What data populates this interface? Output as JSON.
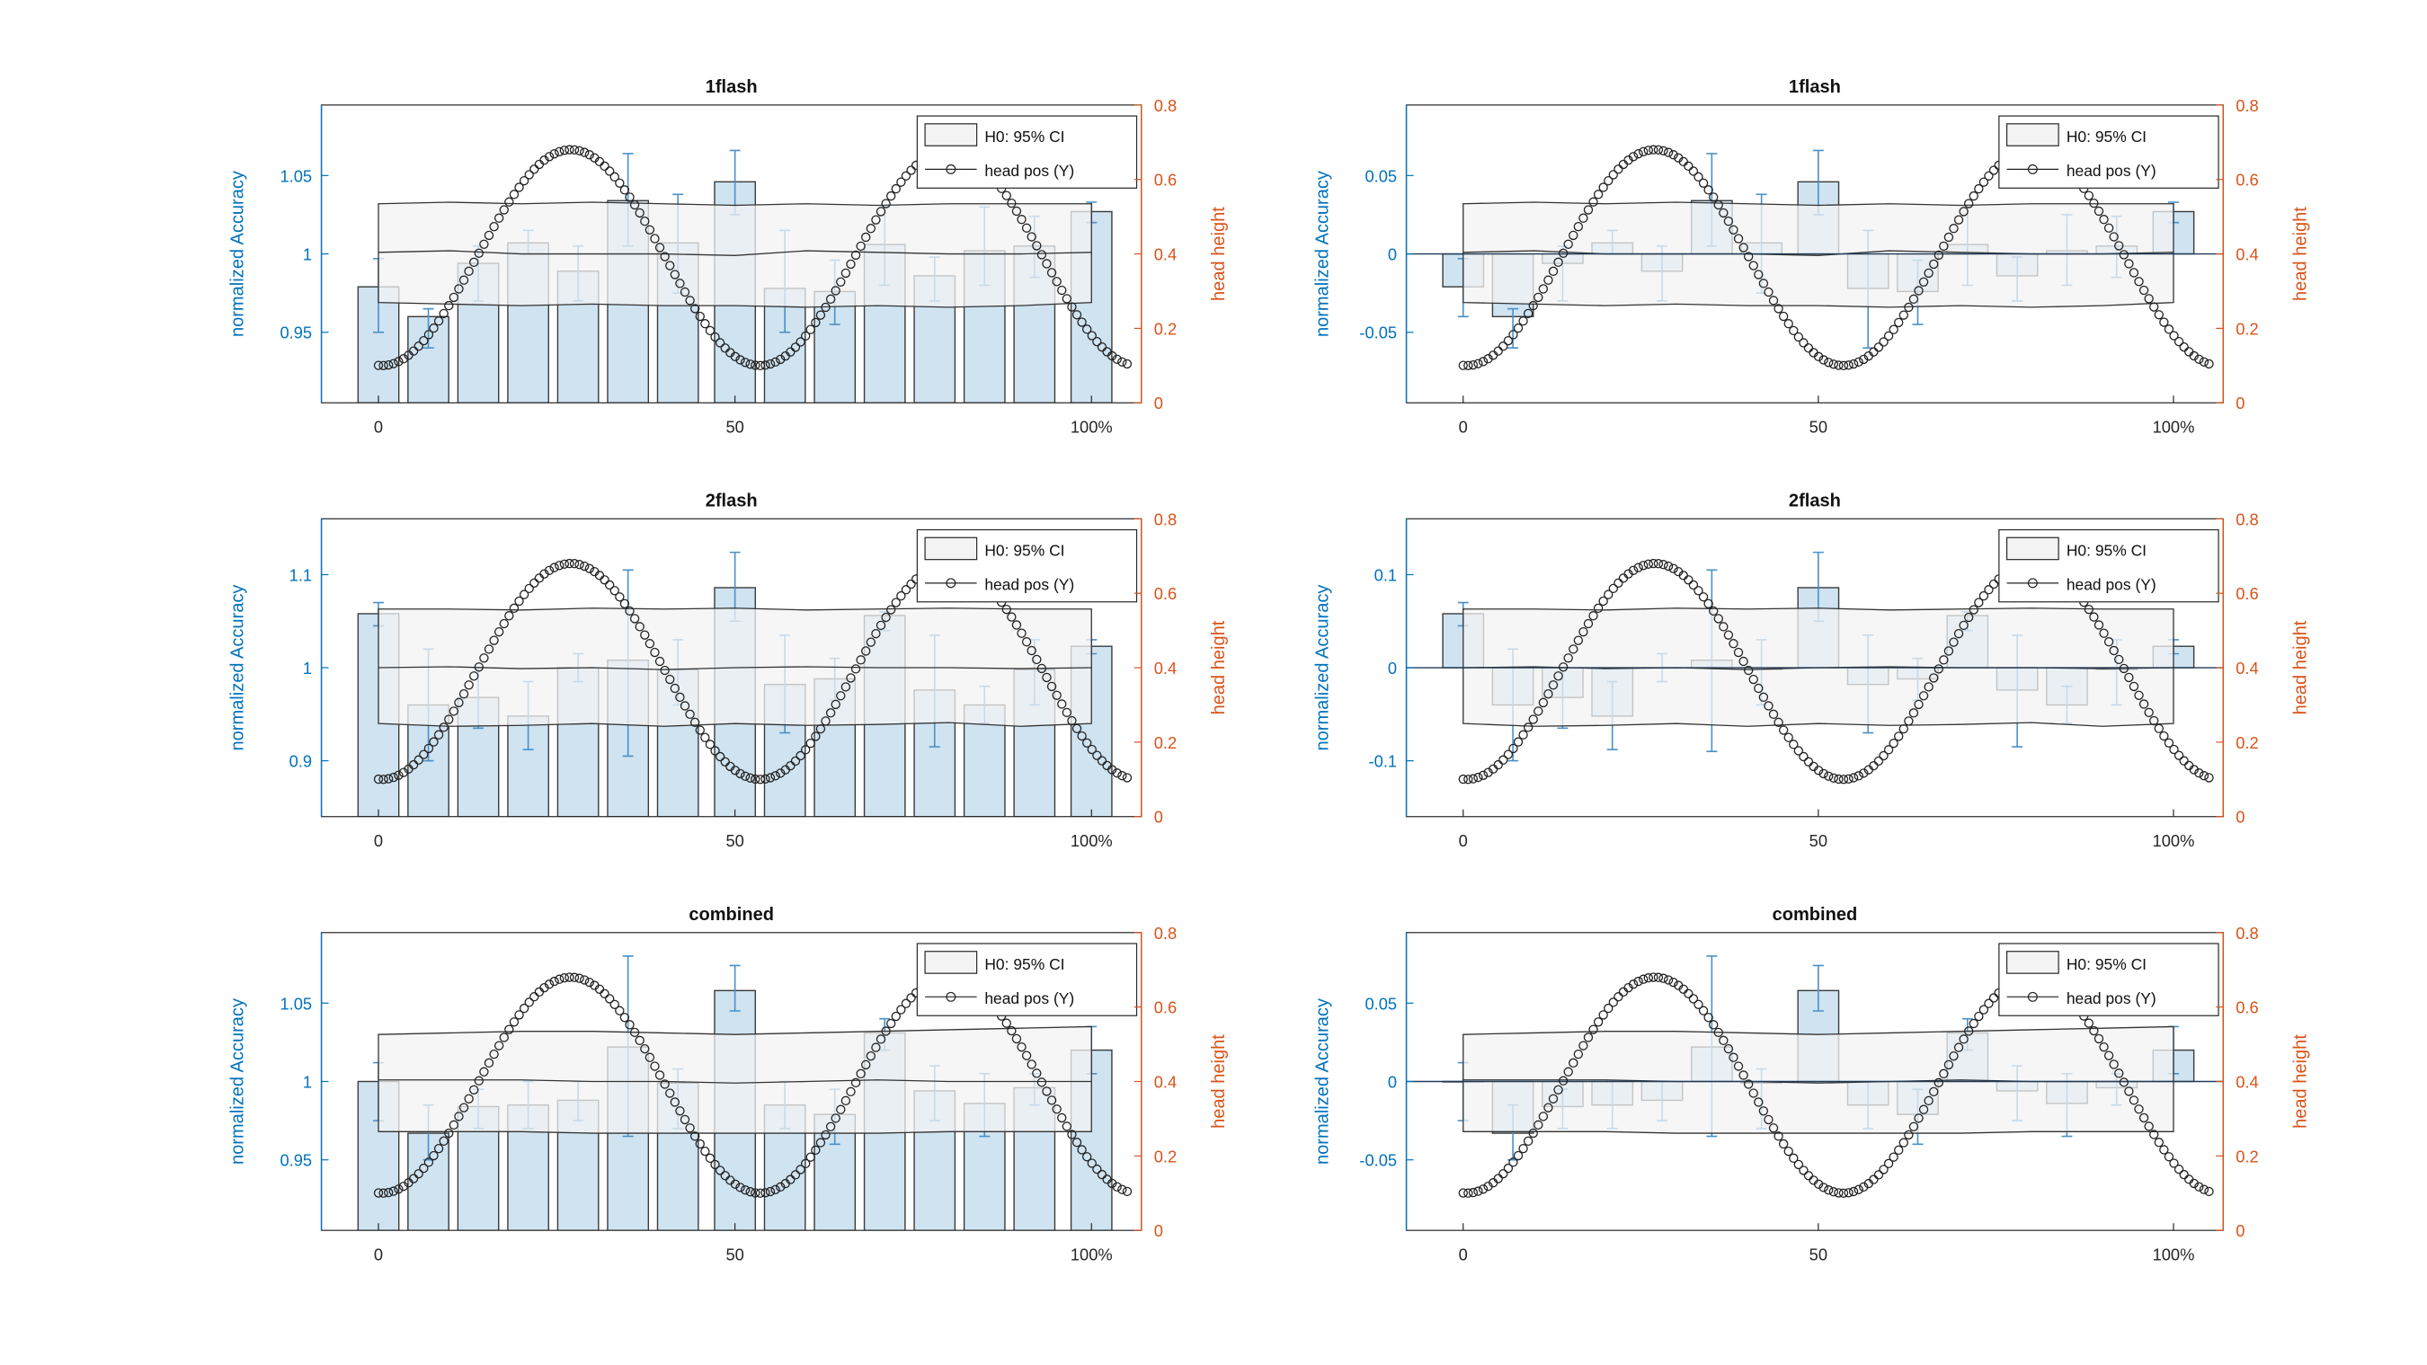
{
  "colors": {
    "bar_fill": "#cfe3f1",
    "bar_edge": "#3a3a3a",
    "error_bar": "#4a90c8",
    "left_axis": "#0072bd",
    "right_axis": "#d95319",
    "ci_fill": "#f3f3f3",
    "ci_edge": "#333333",
    "curve": "#222222"
  },
  "legend": {
    "ci_label": "H0: 95% CI",
    "curve_label": "head pos (Y)"
  },
  "x_axis": {
    "range": [
      -8,
      107
    ],
    "ticks": [
      0,
      50,
      100
    ],
    "tick_labels": [
      "0",
      "50",
      "100%"
    ]
  },
  "right_axis": {
    "label": "head height",
    "range": [
      0,
      0.8
    ],
    "ticks": [
      0,
      0.2,
      0.4,
      0.6,
      0.8
    ],
    "tick_labels": [
      "0",
      "0.2",
      "0.4",
      "0.6",
      "0.8"
    ]
  },
  "chart_data": [
    {
      "type": "bar",
      "title": "1flash",
      "ylabel": "normalized Accuracy",
      "ylim": [
        0.905,
        1.095
      ],
      "yticks": [
        0.95,
        1,
        1.05
      ],
      "ytick_labels": [
        "0.95",
        "1",
        "1.05"
      ],
      "x": [
        0,
        7,
        14,
        21,
        28,
        35,
        42,
        50,
        57,
        64,
        71,
        78,
        85,
        92,
        100
      ],
      "values": [
        0.979,
        0.96,
        0.994,
        1.007,
        0.989,
        1.034,
        1.007,
        1.046,
        0.978,
        0.976,
        1.006,
        0.986,
        1.002,
        1.005,
        1.027
      ],
      "err_low": [
        0.95,
        0.94,
        0.97,
        1.0,
        0.97,
        1.005,
        0.975,
        1.025,
        0.95,
        0.955,
        0.98,
        0.97,
        0.98,
        0.985,
        1.02
      ],
      "err_high": [
        0.997,
        0.965,
        1.005,
        1.015,
        1.005,
        1.064,
        1.038,
        1.066,
        1.015,
        0.996,
        1.03,
        0.998,
        1.03,
        1.024,
        1.033
      ],
      "ci": {
        "x": [
          0,
          10,
          20,
          30,
          40,
          50,
          60,
          70,
          80,
          90,
          100
        ],
        "upper": [
          1.032,
          1.033,
          1.032,
          1.033,
          1.032,
          1.031,
          1.032,
          1.031,
          1.032,
          1.032,
          1.032
        ],
        "mid": [
          1.001,
          1.002,
          1.0,
          1.0,
          1.0,
          0.999,
          1.002,
          1.001,
          1.0,
          1.0,
          1.001
        ],
        "lower": [
          0.969,
          0.968,
          0.967,
          0.968,
          0.967,
          0.967,
          0.966,
          0.967,
          0.966,
          0.967,
          0.969
        ]
      }
    },
    {
      "type": "bar",
      "title": "1flash",
      "ylabel": "normalized Accuracy",
      "ylim": [
        -0.095,
        0.095
      ],
      "yticks": [
        -0.05,
        0,
        0.05
      ],
      "ytick_labels": [
        "-0.05",
        "0",
        "0.05"
      ],
      "x": [
        0,
        7,
        14,
        21,
        28,
        35,
        42,
        50,
        57,
        64,
        71,
        78,
        85,
        92,
        100
      ],
      "values": [
        -0.021,
        -0.04,
        -0.006,
        0.007,
        -0.011,
        0.034,
        0.007,
        0.046,
        -0.022,
        -0.024,
        0.006,
        -0.014,
        0.002,
        0.005,
        0.027
      ],
      "err_low": [
        -0.04,
        -0.06,
        -0.03,
        0.0,
        -0.03,
        0.005,
        -0.025,
        0.025,
        -0.06,
        -0.045,
        -0.02,
        -0.03,
        -0.02,
        -0.015,
        0.02
      ],
      "err_high": [
        -0.003,
        -0.035,
        0.005,
        0.015,
        0.005,
        0.064,
        0.038,
        0.066,
        0.015,
        -0.004,
        0.03,
        -0.002,
        0.025,
        0.024,
        0.033
      ],
      "ci": {
        "x": [
          0,
          10,
          20,
          30,
          40,
          50,
          60,
          70,
          80,
          90,
          100
        ],
        "upper": [
          0.032,
          0.033,
          0.032,
          0.033,
          0.032,
          0.031,
          0.032,
          0.031,
          0.032,
          0.032,
          0.032
        ],
        "mid": [
          0.001,
          0.002,
          0.0,
          0.0,
          0.0,
          -0.001,
          0.002,
          0.001,
          0.0,
          0.0,
          0.001
        ],
        "lower": [
          -0.031,
          -0.032,
          -0.033,
          -0.032,
          -0.033,
          -0.033,
          -0.034,
          -0.033,
          -0.034,
          -0.033,
          -0.031
        ]
      }
    },
    {
      "type": "bar",
      "title": "2flash",
      "ylabel": "normalized Accuracy",
      "ylim": [
        0.84,
        1.16
      ],
      "yticks": [
        0.9,
        1,
        1.1
      ],
      "ytick_labels": [
        "0.9",
        "1",
        "1.1"
      ],
      "x": [
        0,
        7,
        14,
        21,
        28,
        35,
        42,
        50,
        57,
        64,
        71,
        78,
        85,
        92,
        100
      ],
      "values": [
        1.058,
        0.96,
        0.968,
        0.948,
        1.0,
        1.008,
        0.998,
        1.086,
        0.982,
        0.988,
        1.056,
        0.976,
        0.96,
        0.998,
        1.023
      ],
      "err_low": [
        1.045,
        0.9,
        0.935,
        0.912,
        0.985,
        0.905,
        0.96,
        1.05,
        0.93,
        0.965,
        1.04,
        0.915,
        0.94,
        0.96,
        1.015
      ],
      "err_high": [
        1.07,
        1.02,
        1.0,
        0.985,
        1.015,
        1.105,
        1.03,
        1.124,
        1.035,
        1.01,
        1.06,
        1.035,
        0.98,
        1.03,
        1.03
      ],
      "ci": {
        "x": [
          0,
          10,
          20,
          30,
          40,
          50,
          60,
          70,
          80,
          90,
          100
        ],
        "upper": [
          1.063,
          1.063,
          1.062,
          1.064,
          1.063,
          1.064,
          1.062,
          1.063,
          1.064,
          1.063,
          1.063
        ],
        "mid": [
          1.0,
          1.001,
          0.999,
          1.0,
          0.998,
          1.0,
          1.001,
          1.0,
          1.0,
          0.999,
          1.0
        ],
        "lower": [
          0.94,
          0.937,
          0.938,
          0.94,
          0.937,
          0.94,
          0.938,
          0.939,
          0.941,
          0.937,
          0.94
        ]
      }
    },
    {
      "type": "bar",
      "title": "2flash",
      "ylabel": "normalized Accuracy",
      "ylim": [
        -0.16,
        0.16
      ],
      "yticks": [
        -0.1,
        0,
        0.1
      ],
      "ytick_labels": [
        "-0.1",
        "0",
        "0.1"
      ],
      "x": [
        0,
        7,
        14,
        21,
        28,
        35,
        42,
        50,
        57,
        64,
        71,
        78,
        85,
        92,
        100
      ],
      "values": [
        0.058,
        -0.04,
        -0.032,
        -0.052,
        0.0,
        0.008,
        -0.002,
        0.086,
        -0.018,
        -0.012,
        0.056,
        -0.024,
        -0.04,
        -0.002,
        0.023
      ],
      "err_low": [
        0.045,
        -0.1,
        -0.065,
        -0.088,
        -0.015,
        -0.09,
        -0.04,
        0.05,
        -0.07,
        -0.035,
        0.04,
        -0.085,
        -0.06,
        -0.04,
        0.015
      ],
      "err_high": [
        0.07,
        0.02,
        0.0,
        -0.015,
        0.015,
        0.105,
        0.03,
        0.124,
        0.035,
        0.01,
        0.06,
        0.035,
        -0.02,
        0.03,
        0.03
      ],
      "ci": {
        "x": [
          0,
          10,
          20,
          30,
          40,
          50,
          60,
          70,
          80,
          90,
          100
        ],
        "upper": [
          0.063,
          0.063,
          0.062,
          0.064,
          0.063,
          0.064,
          0.062,
          0.063,
          0.064,
          0.063,
          0.063
        ],
        "mid": [
          0.0,
          0.001,
          -0.001,
          0.0,
          -0.002,
          0.0,
          0.001,
          0.0,
          0.0,
          -0.001,
          0.0
        ],
        "lower": [
          -0.06,
          -0.063,
          -0.062,
          -0.06,
          -0.063,
          -0.06,
          -0.062,
          -0.061,
          -0.059,
          -0.063,
          -0.06
        ]
      }
    },
    {
      "type": "bar",
      "title": "combined",
      "ylabel": "normalized Accuracy",
      "ylim": [
        0.905,
        1.095
      ],
      "yticks": [
        0.95,
        1,
        1.05
      ],
      "ytick_labels": [
        "0.95",
        "1",
        "1.05"
      ],
      "x": [
        0,
        7,
        14,
        21,
        28,
        35,
        42,
        50,
        57,
        64,
        71,
        78,
        85,
        92,
        100
      ],
      "values": [
        1.0,
        0.967,
        0.984,
        0.985,
        0.988,
        1.022,
        0.999,
        1.058,
        0.985,
        0.979,
        1.031,
        0.994,
        0.986,
        0.996,
        1.02
      ],
      "err_low": [
        0.975,
        0.95,
        0.97,
        0.97,
        0.975,
        0.965,
        0.97,
        1.045,
        0.97,
        0.96,
        1.02,
        0.975,
        0.965,
        0.985,
        1.005
      ],
      "err_high": [
        1.012,
        0.985,
        0.995,
        1.0,
        1.0,
        1.08,
        1.008,
        1.074,
        1.0,
        0.995,
        1.04,
        1.01,
        1.005,
        1.005,
        1.035
      ],
      "ci": {
        "x": [
          0,
          10,
          20,
          30,
          40,
          50,
          60,
          70,
          80,
          90,
          100
        ],
        "upper": [
          1.03,
          1.031,
          1.032,
          1.032,
          1.031,
          1.03,
          1.031,
          1.032,
          1.033,
          1.034,
          1.035
        ],
        "mid": [
          1.001,
          1.001,
          1.001,
          1.0,
          1.0,
          0.999,
          1.0,
          1.001,
          1.0,
          1.0,
          1.0
        ],
        "lower": [
          0.968,
          0.968,
          0.968,
          0.967,
          0.967,
          0.967,
          0.967,
          0.967,
          0.968,
          0.968,
          0.968
        ]
      }
    },
    {
      "type": "bar",
      "title": "combined",
      "ylabel": "normalized Accuracy",
      "ylim": [
        -0.095,
        0.095
      ],
      "yticks": [
        -0.05,
        0,
        0.05
      ],
      "ytick_labels": [
        "-0.05",
        "0",
        "0.05"
      ],
      "x": [
        0,
        7,
        14,
        21,
        28,
        35,
        42,
        50,
        57,
        64,
        71,
        78,
        85,
        92,
        100
      ],
      "values": [
        0.0,
        -0.033,
        -0.016,
        -0.015,
        -0.012,
        0.022,
        -0.001,
        0.058,
        -0.015,
        -0.021,
        0.031,
        -0.006,
        -0.014,
        -0.004,
        0.02
      ],
      "err_low": [
        -0.025,
        -0.05,
        -0.03,
        -0.03,
        -0.025,
        -0.035,
        -0.03,
        0.045,
        -0.03,
        -0.04,
        0.02,
        -0.025,
        -0.035,
        -0.015,
        0.005
      ],
      "err_high": [
        0.012,
        -0.015,
        -0.005,
        0.0,
        0.0,
        0.08,
        0.008,
        0.074,
        0.0,
        -0.005,
        0.04,
        0.01,
        0.005,
        0.005,
        0.035
      ],
      "ci": {
        "x": [
          0,
          10,
          20,
          30,
          40,
          50,
          60,
          70,
          80,
          90,
          100
        ],
        "upper": [
          0.03,
          0.031,
          0.032,
          0.032,
          0.031,
          0.03,
          0.031,
          0.032,
          0.033,
          0.034,
          0.035
        ],
        "mid": [
          0.001,
          0.001,
          0.001,
          0.0,
          0.0,
          -0.001,
          0.0,
          0.001,
          0.0,
          0.0,
          0.0
        ],
        "lower": [
          -0.032,
          -0.032,
          -0.032,
          -0.033,
          -0.033,
          -0.033,
          -0.033,
          -0.033,
          -0.032,
          -0.032,
          -0.032
        ]
      }
    }
  ],
  "head_curve": {
    "type": "line",
    "name": "head pos (Y)",
    "x_range": [
      0,
      105
    ],
    "points": 150,
    "y_min": 0.1,
    "y_max": 0.68,
    "peaks_at": [
      27,
      80
    ],
    "trough_at": 53
  }
}
